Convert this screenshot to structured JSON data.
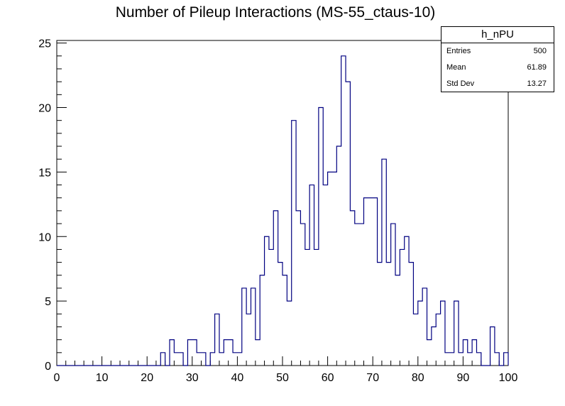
{
  "chart_data": {
    "type": "histogram",
    "title": "Number of Pileup Interactions (MS-55_ctaus-10)",
    "xlabel": "",
    "ylabel": "",
    "xlim": [
      0,
      100
    ],
    "ylim": [
      0,
      25.2
    ],
    "bin_width": 1,
    "x_ticks": [
      "0",
      "10",
      "20",
      "30",
      "40",
      "50",
      "60",
      "70",
      "80",
      "90",
      "100"
    ],
    "y_ticks": [
      "0",
      "5",
      "10",
      "15",
      "20",
      "25"
    ],
    "line_color": "#000080",
    "values": [
      0,
      0,
      0,
      0,
      0,
      0,
      0,
      0,
      0,
      0,
      0,
      0,
      0,
      0,
      0,
      0,
      0,
      0,
      0,
      0,
      0,
      0,
      0,
      1,
      0,
      2,
      1,
      1,
      0,
      2,
      2,
      1,
      1,
      0,
      1,
      4,
      1,
      2,
      2,
      1,
      1,
      6,
      4,
      6,
      2,
      7,
      10,
      9,
      12,
      8,
      7,
      5,
      19,
      12,
      11,
      9,
      14,
      9,
      20,
      14,
      15,
      15,
      17,
      24,
      22,
      12,
      11,
      11,
      13,
      13,
      13,
      8,
      16,
      8,
      11,
      7,
      9,
      10,
      8,
      4,
      5,
      6,
      2,
      3,
      4,
      5,
      1,
      1,
      5,
      1,
      2,
      1,
      2,
      1,
      0,
      0,
      3,
      1,
      0,
      1
    ],
    "stats": {
      "name": "h_nPU",
      "entries_label": "Entries",
      "entries": "500",
      "mean_label": "Mean",
      "mean": "61.89",
      "std_label": "Std Dev",
      "std": "13.27"
    }
  }
}
